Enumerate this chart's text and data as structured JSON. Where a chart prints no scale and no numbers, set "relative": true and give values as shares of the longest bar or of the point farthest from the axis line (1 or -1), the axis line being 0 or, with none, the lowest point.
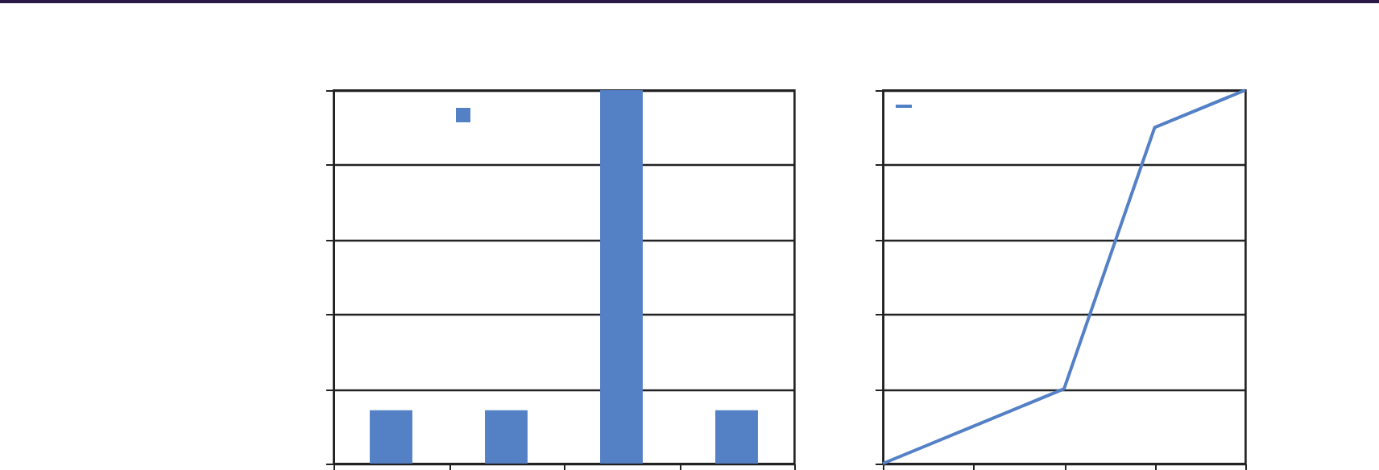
{
  "chart_data": [
    {
      "type": "bar",
      "relative": true,
      "categories": [
        null,
        null,
        null,
        null
      ],
      "grid": "y",
      "series": [
        {
          "color": "#5480c6",
          "values": [
            0.143,
            0.143,
            1,
            0.143
          ]
        }
      ]
    },
    {
      "type": "line",
      "relative": true,
      "categories": [
        null,
        null,
        null,
        null,
        null
      ],
      "grid": "y",
      "series": [
        {
          "color": "#4f7fc4",
          "values": [
            0,
            0.1,
            0.2,
            0.9,
            1
          ]
        }
      ]
    }
  ]
}
